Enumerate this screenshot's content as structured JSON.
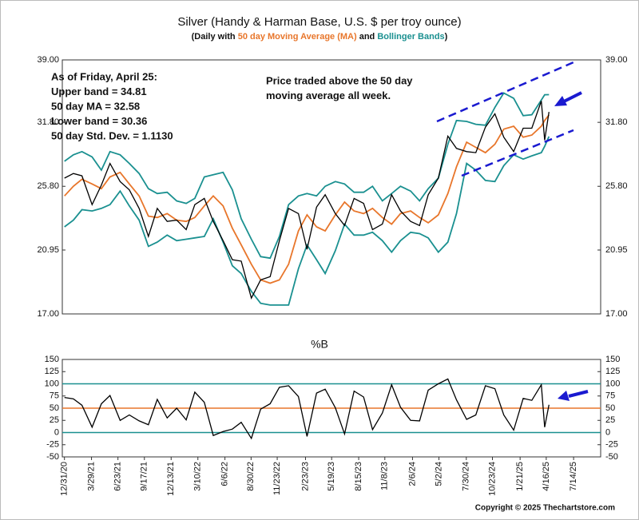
{
  "chart_data": [
    {
      "type": "line",
      "title": "Silver (Handy & Harman Base, U.S. $ per troy ounce)",
      "subtitle_parts": [
        {
          "text": "(Daily with ",
          "color": "#111111"
        },
        {
          "text": "50 day Moving Average (MA)",
          "color": "#e8762b"
        },
        {
          "text": " and ",
          "color": "#111111"
        },
        {
          "text": "Bollinger Bands",
          "color": "#1a9090"
        },
        {
          "text": ")",
          "color": "#111111"
        }
      ],
      "annotations": [
        {
          "lines": [
            "As of Friday, April 25:",
            "Upper band = 34.81",
            "50 day MA = 32.58",
            "Lower band = 30.36",
            "50 day Std. Dev. = 1.1130"
          ],
          "color": "#1a1ad0"
        },
        {
          "lines": [
            "Price traded above the 50 day",
            "moving average all week."
          ],
          "color": "#1a1ad0"
        }
      ],
      "log_y": true,
      "ylim": [
        17,
        39
      ],
      "yticks": [
        {
          "value": 17,
          "label": "17.00"
        },
        {
          "value": 20.95,
          "label": "20.95"
        },
        {
          "value": 25.8,
          "label": "25.80"
        },
        {
          "value": 31.8,
          "label": "31.80"
        },
        {
          "value": 39,
          "label": "39.00"
        }
      ],
      "xlim": [
        "12/24/20",
        "10/10/25"
      ],
      "x": [
        "12/31/20",
        "1/29/21",
        "2/26/21",
        "3/31/21",
        "4/30/21",
        "5/28/21",
        "6/30/21",
        "7/30/21",
        "8/31/21",
        "9/30/21",
        "10/29/21",
        "11/30/21",
        "12/31/21",
        "1/31/22",
        "2/28/22",
        "3/31/22",
        "4/29/22",
        "5/31/22",
        "6/30/22",
        "7/29/22",
        "8/31/22",
        "9/30/22",
        "10/31/22",
        "11/30/22",
        "12/30/22",
        "1/31/23",
        "2/28/23",
        "3/31/23",
        "4/28/23",
        "5/31/23",
        "6/30/23",
        "7/31/23",
        "8/31/23",
        "9/29/23",
        "10/31/23",
        "11/30/23",
        "12/29/23",
        "1/31/24",
        "2/29/24",
        "3/28/24",
        "4/30/24",
        "5/31/24",
        "6/28/24",
        "7/31/24",
        "8/30/24",
        "9/30/24",
        "10/31/24",
        "11/29/24",
        "12/31/24",
        "1/31/25",
        "2/28/25",
        "3/31/25",
        "4/11/25",
        "4/25/25"
      ],
      "series": [
        {
          "name": "Upper band",
          "color": "#1a9090",
          "values": [
            28.0,
            28.6,
            28.9,
            28.4,
            27.2,
            28.9,
            28.6,
            27.8,
            26.9,
            25.6,
            25.2,
            25.3,
            24.6,
            24.4,
            24.8,
            26.6,
            26.8,
            27.0,
            25.5,
            23.2,
            21.7,
            20.5,
            20.4,
            21.9,
            24.3,
            25.0,
            25.2,
            25.0,
            25.8,
            26.2,
            26.0,
            25.3,
            25.3,
            25.8,
            24.6,
            25.2,
            25.8,
            25.4,
            24.6,
            25.6,
            26.5,
            29.6,
            32.0,
            31.9,
            31.6,
            31.5,
            33.4,
            35.0,
            34.4,
            32.5,
            32.6,
            34.2,
            34.8,
            34.81
          ]
        },
        {
          "name": "Lower band",
          "color": "#1a9090",
          "values": [
            22.6,
            23.1,
            23.9,
            23.8,
            24.0,
            24.3,
            25.4,
            24.2,
            23.1,
            21.2,
            21.5,
            22.0,
            21.6,
            21.7,
            21.8,
            21.9,
            23.2,
            21.5,
            19.9,
            19.4,
            18.3,
            17.6,
            17.5,
            17.5,
            17.5,
            19.7,
            21.3,
            20.3,
            19.4,
            20.9,
            22.8,
            22.0,
            22.0,
            22.2,
            21.6,
            20.8,
            21.6,
            22.2,
            22.1,
            21.8,
            20.8,
            21.5,
            23.6,
            27.8,
            27.2,
            26.3,
            26.2,
            27.6,
            28.6,
            28.2,
            28.5,
            28.8,
            29.4,
            30.36
          ]
        },
        {
          "name": "50 day MA",
          "color": "#e8762b",
          "values": [
            25.0,
            25.8,
            26.4,
            26.0,
            25.6,
            26.6,
            27.0,
            26.0,
            25.0,
            23.4,
            23.3,
            23.6,
            23.1,
            23.0,
            23.3,
            24.2,
            25.0,
            24.2,
            22.5,
            21.3,
            20.0,
            19.0,
            18.8,
            19.0,
            20.0,
            22.3,
            23.5,
            22.6,
            22.3,
            23.5,
            24.5,
            23.8,
            23.6,
            24.0,
            23.3,
            22.8,
            23.6,
            23.8,
            23.3,
            22.9,
            23.5,
            25.2,
            27.5,
            29.8,
            29.3,
            28.8,
            29.6,
            31.1,
            31.4,
            30.3,
            30.5,
            31.4,
            32.0,
            32.58
          ]
        },
        {
          "name": "Price",
          "color": "#000000",
          "values": [
            26.5,
            26.9,
            26.7,
            24.3,
            25.9,
            27.8,
            26.2,
            25.5,
            24.0,
            21.9,
            24.0,
            23.0,
            23.1,
            22.4,
            24.3,
            24.8,
            23.0,
            21.6,
            20.3,
            20.2,
            17.9,
            19.0,
            19.2,
            21.6,
            24.0,
            23.6,
            21.0,
            24.1,
            25.1,
            23.6,
            22.7,
            24.8,
            24.4,
            22.4,
            22.8,
            25.1,
            23.8,
            23.0,
            22.7,
            25.1,
            26.5,
            30.4,
            29.2,
            28.9,
            28.8,
            31.3,
            32.7,
            30.3,
            28.9,
            31.2,
            31.2,
            34.1,
            30.0,
            32.9
          ]
        }
      ]
    },
    {
      "type": "line",
      "title": "%B",
      "ylim": [
        -50,
        150
      ],
      "yticks": [
        -50,
        -25,
        0,
        25,
        50,
        75,
        100,
        125,
        150
      ],
      "hlines": [
        {
          "value": 100,
          "color": "#1a9090"
        },
        {
          "value": 50,
          "color": "#e8762b"
        },
        {
          "value": 0,
          "color": "#1a9090"
        }
      ],
      "xlim": [
        "12/24/20",
        "10/10/25"
      ],
      "xticks": [
        "12/31/20",
        "3/29/21",
        "6/23/21",
        "9/17/21",
        "12/13/21",
        "3/10/22",
        "6/6/22",
        "8/30/22",
        "11/23/22",
        "2/23/23",
        "5/19/23",
        "8/15/23",
        "11/8/23",
        "2/6/24",
        "5/2/24",
        "7/30/24",
        "10/23/24",
        "1/21/25",
        "4/16/25",
        "7/14/25"
      ],
      "x": [
        "12/31/20",
        "1/29/21",
        "2/26/21",
        "3/31/21",
        "4/30/21",
        "5/28/21",
        "6/30/21",
        "7/30/21",
        "8/31/21",
        "9/30/21",
        "10/29/21",
        "11/30/21",
        "12/31/21",
        "1/31/22",
        "2/28/22",
        "3/31/22",
        "4/29/22",
        "5/31/22",
        "6/30/22",
        "7/29/22",
        "8/31/22",
        "9/30/22",
        "10/31/22",
        "11/30/22",
        "12/30/22",
        "1/31/23",
        "2/28/23",
        "3/31/23",
        "4/28/23",
        "5/31/23",
        "6/30/23",
        "7/31/23",
        "8/31/23",
        "9/29/23",
        "10/31/23",
        "11/30/23",
        "12/29/23",
        "1/31/24",
        "2/29/24",
        "3/28/24",
        "4/30/24",
        "5/31/24",
        "6/28/24",
        "7/31/24",
        "8/30/24",
        "9/30/24",
        "10/31/24",
        "11/29/24",
        "12/31/24",
        "1/31/25",
        "2/28/25",
        "3/31/25",
        "4/11/25",
        "4/25/25"
      ],
      "series": [
        {
          "name": "%B",
          "color": "#000000",
          "values": [
            72,
            69,
            56,
            11,
            59,
            76,
            25,
            36,
            24,
            16,
            68,
            30,
            50,
            26,
            83,
            62,
            -6,
            2,
            7,
            21,
            -12,
            48,
            59,
            93,
            96,
            74,
            -8,
            81,
            89,
            51,
            -3,
            85,
            73,
            6,
            40,
            98,
            52,
            25,
            24,
            87,
            100,
            110,
            67,
            27,
            36,
            96,
            90,
            36,
            5,
            70,
            66,
            98,
            11,
            57
          ]
        }
      ]
    }
  ],
  "footer": "Copyright © 2025 Thechartstore.com"
}
